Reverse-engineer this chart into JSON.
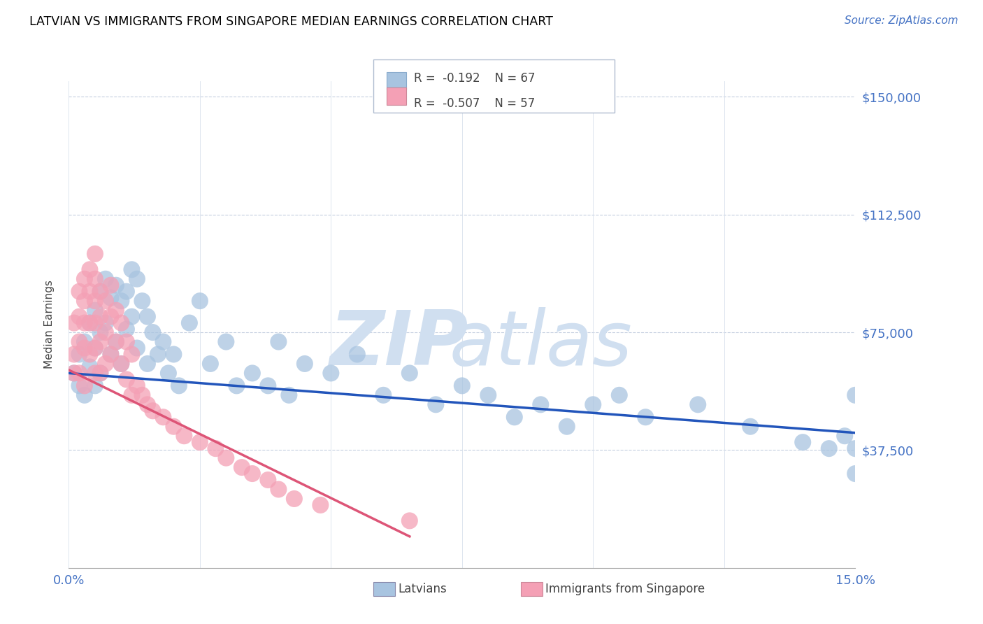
{
  "title": "LATVIAN VS IMMIGRANTS FROM SINGAPORE MEDIAN EARNINGS CORRELATION CHART",
  "source": "Source: ZipAtlas.com",
  "ylabel": "Median Earnings",
  "yticks": [
    0,
    37500,
    75000,
    112500,
    150000
  ],
  "ytick_labels": [
    "",
    "$37,500",
    "$75,000",
    "$112,500",
    "$150,000"
  ],
  "xmin": 0.0,
  "xmax": 0.15,
  "ymin": 0,
  "ymax": 155000,
  "blue_R": -0.192,
  "blue_N": 67,
  "pink_R": -0.507,
  "pink_N": 57,
  "blue_color": "#a8c4e0",
  "pink_color": "#f4a0b5",
  "blue_line_color": "#2255bb",
  "pink_line_color": "#dd5577",
  "watermark_color": "#d0dff0",
  "blue_scatter_x": [
    0.001,
    0.002,
    0.002,
    0.003,
    0.003,
    0.004,
    0.004,
    0.005,
    0.005,
    0.005,
    0.006,
    0.006,
    0.006,
    0.007,
    0.007,
    0.008,
    0.008,
    0.009,
    0.009,
    0.01,
    0.01,
    0.011,
    0.011,
    0.012,
    0.012,
    0.013,
    0.013,
    0.014,
    0.015,
    0.015,
    0.016,
    0.017,
    0.018,
    0.019,
    0.02,
    0.021,
    0.023,
    0.025,
    0.027,
    0.03,
    0.032,
    0.035,
    0.038,
    0.04,
    0.042,
    0.045,
    0.05,
    0.055,
    0.06,
    0.065,
    0.07,
    0.075,
    0.08,
    0.085,
    0.09,
    0.095,
    0.1,
    0.105,
    0.11,
    0.12,
    0.13,
    0.14,
    0.145,
    0.148,
    0.15,
    0.15,
    0.15
  ],
  "blue_scatter_y": [
    62000,
    58000,
    68000,
    72000,
    55000,
    78000,
    64000,
    82000,
    70000,
    58000,
    88000,
    75000,
    62000,
    92000,
    78000,
    86000,
    68000,
    90000,
    72000,
    85000,
    65000,
    88000,
    76000,
    95000,
    80000,
    92000,
    70000,
    85000,
    80000,
    65000,
    75000,
    68000,
    72000,
    62000,
    68000,
    58000,
    78000,
    85000,
    65000,
    72000,
    58000,
    62000,
    58000,
    72000,
    55000,
    65000,
    62000,
    68000,
    55000,
    62000,
    52000,
    58000,
    55000,
    48000,
    52000,
    45000,
    52000,
    55000,
    48000,
    52000,
    45000,
    40000,
    38000,
    42000,
    38000,
    55000,
    30000
  ],
  "pink_scatter_x": [
    0.001,
    0.001,
    0.001,
    0.002,
    0.002,
    0.002,
    0.002,
    0.003,
    0.003,
    0.003,
    0.003,
    0.003,
    0.004,
    0.004,
    0.004,
    0.004,
    0.005,
    0.005,
    0.005,
    0.005,
    0.005,
    0.005,
    0.006,
    0.006,
    0.006,
    0.006,
    0.007,
    0.007,
    0.007,
    0.008,
    0.008,
    0.008,
    0.009,
    0.009,
    0.01,
    0.01,
    0.011,
    0.011,
    0.012,
    0.012,
    0.013,
    0.014,
    0.015,
    0.016,
    0.018,
    0.02,
    0.022,
    0.025,
    0.028,
    0.03,
    0.033,
    0.035,
    0.038,
    0.04,
    0.043,
    0.048,
    0.065
  ],
  "pink_scatter_y": [
    78000,
    68000,
    62000,
    88000,
    80000,
    72000,
    62000,
    92000,
    85000,
    78000,
    70000,
    58000,
    95000,
    88000,
    78000,
    68000,
    100000,
    92000,
    85000,
    78000,
    70000,
    62000,
    88000,
    80000,
    72000,
    62000,
    85000,
    75000,
    65000,
    90000,
    80000,
    68000,
    82000,
    72000,
    78000,
    65000,
    72000,
    60000,
    68000,
    55000,
    58000,
    55000,
    52000,
    50000,
    48000,
    45000,
    42000,
    40000,
    38000,
    35000,
    32000,
    30000,
    28000,
    25000,
    22000,
    20000,
    15000
  ],
  "blue_trend_x": [
    0.0,
    0.15
  ],
  "blue_trend_y": [
    62000,
    43000
  ],
  "pink_trend_x": [
    0.0,
    0.065
  ],
  "pink_trend_y": [
    63000,
    10000
  ],
  "xtick_positions": [
    0.0,
    0.025,
    0.05,
    0.075,
    0.1,
    0.125,
    0.15
  ],
  "legend_blue_text": "R =  -0.192    N = 67",
  "legend_pink_text": "R =  -0.507    N = 57"
}
